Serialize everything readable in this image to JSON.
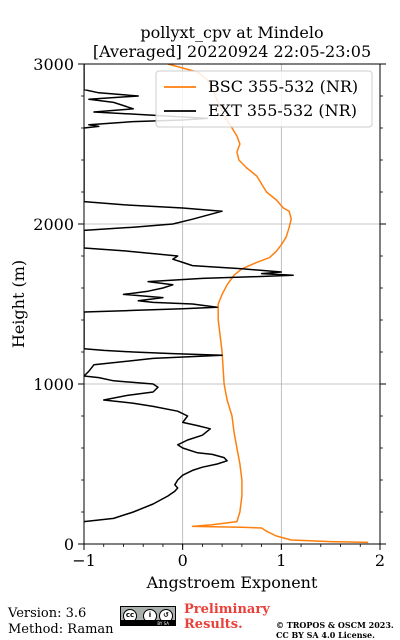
{
  "chart_data": {
    "type": "line",
    "title_line1": "pollyxt_cpv at Mindelo",
    "title_line2": "[Averaged] 20220924 22:05-23:05",
    "xlabel": "Angstroem Exponent",
    "ylabel": "Height (m)",
    "xlim": [
      -1,
      2
    ],
    "ylim": [
      0,
      3000
    ],
    "xticks": [
      "−1",
      "0",
      "1",
      "2"
    ],
    "xtick_values": [
      -1,
      0,
      1,
      2
    ],
    "yticks": [
      "0",
      "1000",
      "2000",
      "3000"
    ],
    "ytick_values": [
      0,
      1000,
      2000,
      3000
    ],
    "grid": true,
    "legend_position": "top-right",
    "series": [
      {
        "name": "BSC 355-532 (NR)",
        "color": "#ff7f0e",
        "points": [
          [
            1.88,
            10
          ],
          [
            1.5,
            15
          ],
          [
            1.1,
            25
          ],
          [
            0.95,
            50
          ],
          [
            0.85,
            80
          ],
          [
            0.8,
            100
          ],
          [
            0.6,
            105
          ],
          [
            0.3,
            108
          ],
          [
            0.1,
            110
          ],
          [
            0.3,
            120
          ],
          [
            0.55,
            140
          ],
          [
            0.58,
            200
          ],
          [
            0.6,
            300
          ],
          [
            0.6,
            400
          ],
          [
            0.58,
            500
          ],
          [
            0.55,
            600
          ],
          [
            0.52,
            700
          ],
          [
            0.5,
            800
          ],
          [
            0.45,
            900
          ],
          [
            0.42,
            1000
          ],
          [
            0.41,
            1100
          ],
          [
            0.4,
            1200
          ],
          [
            0.38,
            1300
          ],
          [
            0.36,
            1400
          ],
          [
            0.36,
            1500
          ],
          [
            0.4,
            1560
          ],
          [
            0.45,
            1620
          ],
          [
            0.52,
            1680
          ],
          [
            0.6,
            1720
          ],
          [
            0.75,
            1760
          ],
          [
            0.88,
            1790
          ],
          [
            0.95,
            1830
          ],
          [
            1.0,
            1870
          ],
          [
            1.05,
            1920
          ],
          [
            1.08,
            1980
          ],
          [
            1.1,
            2030
          ],
          [
            1.08,
            2080
          ],
          [
            1.02,
            2100
          ],
          [
            0.95,
            2150
          ],
          [
            0.85,
            2200
          ],
          [
            0.8,
            2250
          ],
          [
            0.75,
            2300
          ],
          [
            0.65,
            2350
          ],
          [
            0.57,
            2400
          ],
          [
            0.55,
            2450
          ],
          [
            0.58,
            2500
          ],
          [
            0.55,
            2550
          ],
          [
            0.5,
            2600
          ],
          [
            0.45,
            2650
          ],
          [
            0.4,
            2700
          ],
          [
            0.37,
            2750
          ],
          [
            0.33,
            2800
          ],
          [
            0.3,
            2850
          ],
          [
            0.25,
            2900
          ],
          [
            0.15,
            2950
          ],
          [
            -0.15,
            3000
          ]
        ]
      },
      {
        "name": "EXT 355-532 (NR)",
        "color": "#000000",
        "points": [
          [
            -1.0,
            140
          ],
          [
            -0.7,
            160
          ],
          [
            -0.5,
            200
          ],
          [
            -0.3,
            250
          ],
          [
            -0.15,
            300
          ],
          [
            -0.08,
            330
          ],
          [
            -0.05,
            350
          ],
          [
            -0.08,
            370
          ],
          [
            -0.05,
            400
          ],
          [
            0.0,
            430
          ],
          [
            0.1,
            460
          ],
          [
            0.2,
            480
          ],
          [
            0.35,
            500
          ],
          [
            0.45,
            520
          ],
          [
            0.42,
            540
          ],
          [
            0.3,
            560
          ],
          [
            0.15,
            570
          ],
          [
            0.0,
            600
          ],
          [
            -0.05,
            620
          ],
          [
            0.05,
            650
          ],
          [
            0.2,
            680
          ],
          [
            0.28,
            720
          ],
          [
            0.15,
            740
          ],
          [
            0.0,
            760
          ],
          [
            0.05,
            800
          ],
          [
            -0.05,
            830
          ],
          [
            -0.3,
            860
          ],
          [
            -0.5,
            880
          ],
          [
            -0.8,
            900
          ],
          [
            -0.55,
            930
          ],
          [
            -0.3,
            950
          ],
          [
            -0.25,
            980
          ],
          [
            -0.3,
            1000
          ],
          [
            -0.5,
            1010
          ],
          [
            -0.7,
            1020
          ],
          [
            -0.85,
            1040
          ],
          [
            -1.0,
            1050
          ],
          [
            -0.95,
            1080
          ],
          [
            -0.9,
            1120
          ],
          [
            -0.3,
            1160
          ],
          [
            0.4,
            1180
          ],
          [
            -0.1,
            1190
          ],
          [
            -0.5,
            1200
          ],
          [
            -0.8,
            1210
          ],
          [
            -1.0,
            1220
          ],
          [
            -1.0,
            1450
          ],
          [
            -0.5,
            1460
          ],
          [
            0.0,
            1470
          ],
          [
            0.35,
            1480
          ],
          [
            0.1,
            1500
          ],
          [
            -0.3,
            1510
          ],
          [
            -0.45,
            1520
          ],
          [
            -0.2,
            1540
          ],
          [
            -0.6,
            1560
          ],
          [
            -0.35,
            1580
          ],
          [
            -0.2,
            1600
          ],
          [
            -0.1,
            1620
          ],
          [
            -0.35,
            1640
          ],
          [
            0.2,
            1660
          ],
          [
            0.7,
            1670
          ],
          [
            1.12,
            1680
          ],
          [
            0.8,
            1690
          ],
          [
            1.0,
            1700
          ],
          [
            0.6,
            1720
          ],
          [
            0.1,
            1740
          ],
          [
            0.0,
            1760
          ],
          [
            -0.1,
            1780
          ],
          [
            -0.05,
            1800
          ],
          [
            -0.55,
            1830
          ],
          [
            -1.0,
            1850
          ],
          [
            -1.0,
            1960
          ],
          [
            -0.5,
            1980
          ],
          [
            -0.1,
            2000
          ],
          [
            0.1,
            2030
          ],
          [
            0.4,
            2080
          ],
          [
            0.0,
            2100
          ],
          [
            -0.6,
            2120
          ],
          [
            -1.0,
            2140
          ],
          [
            -1.0,
            2600
          ],
          [
            -0.85,
            2610
          ],
          [
            -0.95,
            2620
          ],
          [
            -0.5,
            2640
          ],
          [
            0.0,
            2650
          ],
          [
            0.25,
            2660
          ],
          [
            -0.3,
            2680
          ],
          [
            -0.9,
            2700
          ],
          [
            -0.5,
            2720
          ],
          [
            -0.7,
            2760
          ],
          [
            -0.95,
            2780
          ],
          [
            -0.45,
            2800
          ],
          [
            -0.85,
            2820
          ],
          [
            -1.0,
            2840
          ],
          [
            -1.0,
            3000
          ]
        ]
      }
    ]
  },
  "footer": {
    "version": "Version: 3.6",
    "method": "Method: Raman",
    "preliminary_line1": "Preliminary",
    "preliminary_line2": "Results.",
    "copyright_line1": "© TROPOS & OSCM 2023.",
    "copyright_line2": "CC BY SA 4.0 License.",
    "license_icon": "cc-by-sa-badge-icon"
  }
}
